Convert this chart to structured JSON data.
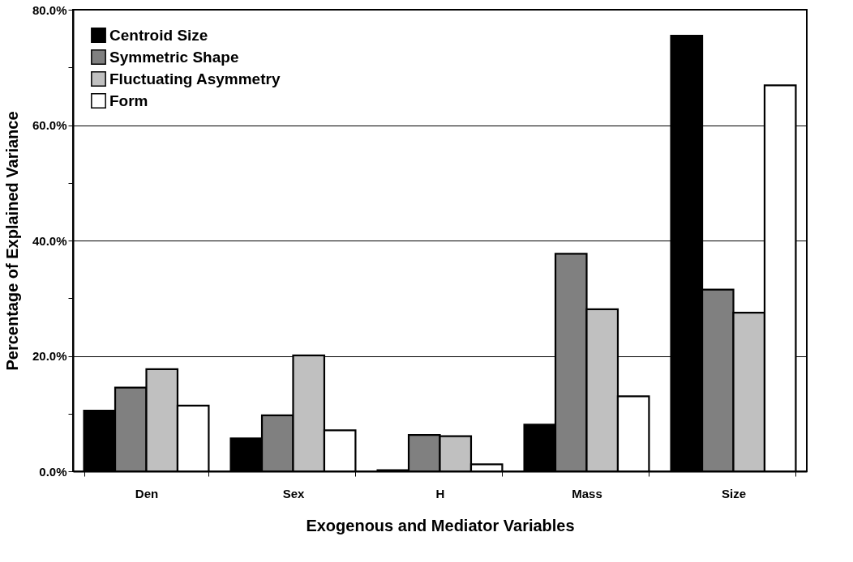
{
  "chart_data": {
    "type": "bar",
    "xlabel": "Exogenous and Mediator Variables",
    "ylabel": "Percentage of Explained Variance",
    "categories": [
      "Den",
      "Sex",
      "H",
      "Mass",
      "Size"
    ],
    "series": [
      {
        "name": "Centroid Size",
        "color": "#000000",
        "values": [
          10.5,
          5.7,
          0.2,
          8.1,
          75.5
        ]
      },
      {
        "name": "Symmetric Shape",
        "color": "#808080",
        "values": [
          14.5,
          9.7,
          6.3,
          37.7,
          31.5
        ]
      },
      {
        "name": "Fluctuating Asymmetry",
        "color": "#c0c0c0",
        "values": [
          17.7,
          20.1,
          6.1,
          28.1,
          27.5
        ]
      },
      {
        "name": "Form",
        "color": "#ffffff",
        "values": [
          11.4,
          7.1,
          1.2,
          13.0,
          66.9
        ]
      }
    ],
    "ylim": [
      0,
      80
    ],
    "yticks": [
      {
        "value": 0,
        "label": "0.0%"
      },
      {
        "value": 10,
        "label": null
      },
      {
        "value": 20,
        "label": "20.0%"
      },
      {
        "value": 30,
        "label": null
      },
      {
        "value": 40,
        "label": "40.0%"
      },
      {
        "value": 50,
        "label": null
      },
      {
        "value": 60,
        "label": "60.0%"
      },
      {
        "value": 70,
        "label": null
      },
      {
        "value": 80,
        "label": "80.0%"
      }
    ],
    "grid": "y",
    "legend": "top left"
  }
}
